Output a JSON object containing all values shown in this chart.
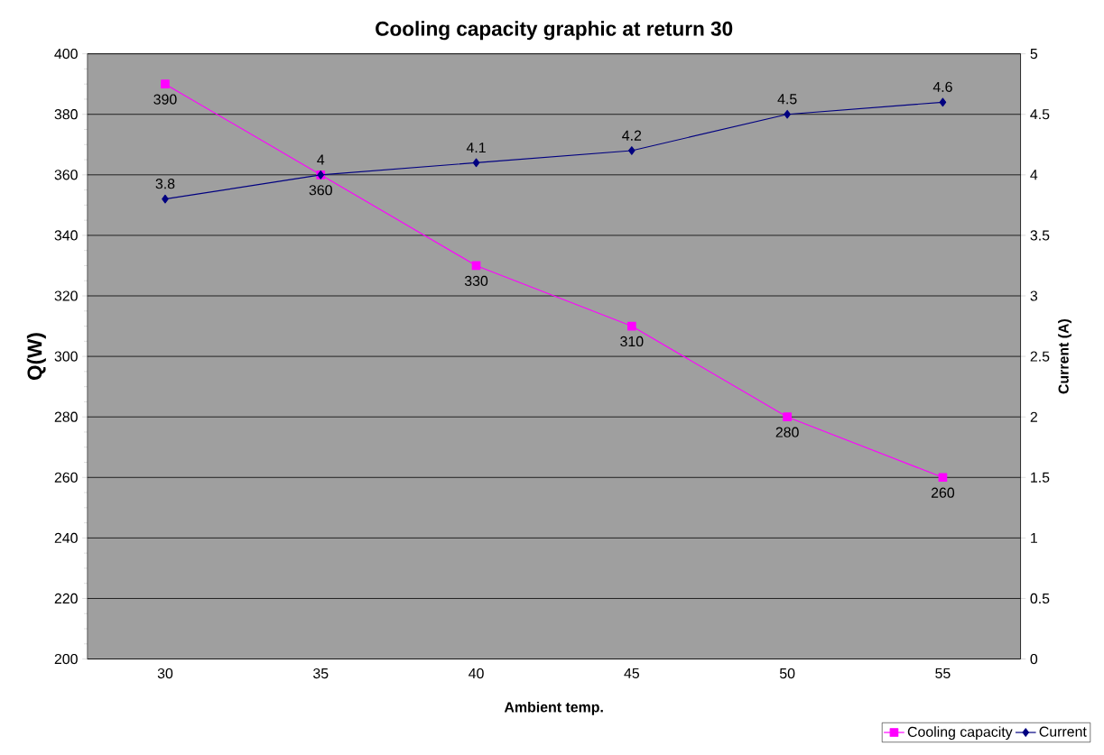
{
  "chart_data": {
    "type": "line",
    "title": "Cooling capacity graphic at return 30",
    "xlabel": "Ambient temp.",
    "ylabel": "Q(W)",
    "y2label": "Current (A)",
    "categories": [
      "30",
      "35",
      "40",
      "45",
      "50",
      "55"
    ],
    "series": [
      {
        "name": "Cooling capacity",
        "color": "#ff00ff",
        "marker": "square",
        "values": [
          390,
          360,
          330,
          310,
          280,
          260
        ]
      },
      {
        "name": "Current",
        "color": "#000080",
        "marker": "diamond",
        "axis": "y2",
        "values": [
          3.8,
          4,
          4.1,
          4.2,
          4.5,
          4.6
        ]
      }
    ],
    "ylim": [
      200,
      400
    ],
    "yticks": [
      200,
      220,
      240,
      260,
      280,
      300,
      320,
      340,
      360,
      380,
      400
    ],
    "y2lim": [
      0,
      5
    ],
    "y2ticks": [
      0,
      0.5,
      1,
      1.5,
      2,
      2.5,
      3,
      3.5,
      4,
      4.5,
      5
    ],
    "grid": "y",
    "legend": "bottom right",
    "data_labels": true
  }
}
